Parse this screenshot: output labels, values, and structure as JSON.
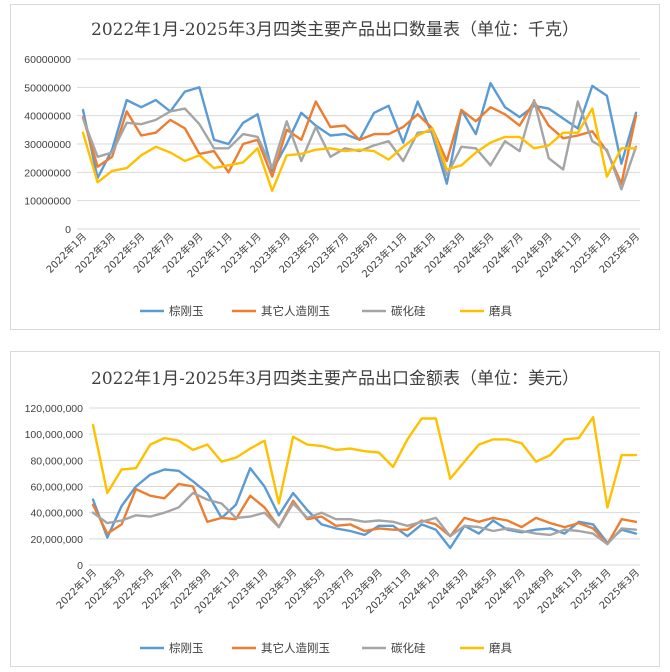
{
  "chart_data": [
    {
      "type": "line",
      "title": "2022年1月-2025年3月四类主要产品出口数量表（单位：千克）",
      "xlabel": "",
      "ylabel": "",
      "ylim": [
        0,
        60000000
      ],
      "yticks": [
        0,
        10000000,
        20000000,
        30000000,
        40000000,
        50000000,
        60000000
      ],
      "ytick_labels": [
        "0",
        "10000000",
        "20000000",
        "30000000",
        "40000000",
        "50000000",
        "60000000"
      ],
      "grid": "horizontal",
      "legend_position": "bottom",
      "x_tick_labels": [
        "2022年1月",
        "2022年3月",
        "2022年5月",
        "2022年7月",
        "2022年9月",
        "2022年11月",
        "2023年1月",
        "2023年3月",
        "2023年5月",
        "2023年7月",
        "2023年9月",
        "2023年11月",
        "2024年1月",
        "2024年3月",
        "2024年5月",
        "2024年7月",
        "2024年9月",
        "2024年11月",
        "2025年1月",
        "2025年3月"
      ],
      "series": [
        {
          "name": "棕刚玉",
          "color": "#5b9bd5",
          "values": [
            42000000,
            18000000,
            28000000,
            45500000,
            43000000,
            45500000,
            41500000,
            48500000,
            50000000,
            31500000,
            30000000,
            37500000,
            40500000,
            20500000,
            30000000,
            41000000,
            36500000,
            33000000,
            33500000,
            31500000,
            41000000,
            43500000,
            30500000,
            45000000,
            33500000,
            16000000,
            42000000,
            33500000,
            51500000,
            43000000,
            39500000,
            43500000,
            42500000,
            39000000,
            35500000,
            50500000,
            47000000,
            23000000,
            41000000
          ]
        },
        {
          "name": "其它人造刚玉",
          "color": "#ed7d31",
          "values": [
            39500000,
            22000000,
            25500000,
            41500000,
            33000000,
            34000000,
            38500000,
            35500000,
            26500000,
            27500000,
            20000000,
            30000000,
            31500000,
            18500000,
            35000000,
            31500000,
            45000000,
            36000000,
            36500000,
            31500000,
            33500000,
            33500000,
            36000000,
            40500000,
            35500000,
            24000000,
            42000000,
            38000000,
            43000000,
            40500000,
            36500000,
            45000000,
            36500000,
            32000000,
            33000000,
            34500000,
            27500000,
            16000000,
            40000000
          ]
        },
        {
          "name": "碳化硅",
          "color": "#a5a5a5",
          "values": [
            39000000,
            25500000,
            27000000,
            37500000,
            37000000,
            38500000,
            41500000,
            42500000,
            37000000,
            28500000,
            28500000,
            33500000,
            32500000,
            21500000,
            38000000,
            24000000,
            36000000,
            25500000,
            28500000,
            27500000,
            29500000,
            31000000,
            24000000,
            34000000,
            34500000,
            19000000,
            29000000,
            28500000,
            22500000,
            31000000,
            27500000,
            45500000,
            25000000,
            21000000,
            45000000,
            31000000,
            28000000,
            14000000,
            29000000
          ]
        },
        {
          "name": "磨具",
          "color": "#ffc000",
          "values": [
            34000000,
            16500000,
            20500000,
            21500000,
            26000000,
            29000000,
            27000000,
            24000000,
            26000000,
            21500000,
            22500000,
            23500000,
            28500000,
            13500000,
            26000000,
            26500000,
            28000000,
            28500000,
            27500000,
            28000000,
            27500000,
            24500000,
            29000000,
            33000000,
            35500000,
            21000000,
            22500000,
            27000000,
            30500000,
            32500000,
            32500000,
            28500000,
            29500000,
            34000000,
            34000000,
            42500000,
            18500000,
            28500000,
            28500000
          ]
        }
      ]
    },
    {
      "type": "line",
      "title": "2022年1月-2025年3月四类主要产品出口金额表（单位：美元）",
      "xlabel": "",
      "ylabel": "",
      "ylim": [
        0,
        120000000
      ],
      "yticks": [
        0,
        20000000,
        40000000,
        60000000,
        80000000,
        100000000,
        120000000
      ],
      "ytick_labels": [
        "0",
        "20,000,000",
        "40,000,000",
        "60,000,000",
        "80,000,000",
        "100,000,000",
        "120,000,000"
      ],
      "grid": "horizontal",
      "legend_position": "bottom",
      "x_tick_labels": [
        "2022年1月",
        "2022年3月",
        "2022年5月",
        "2022年7月",
        "2022年9月",
        "2022年11月",
        "2023年1月",
        "2023年3月",
        "2023年5月",
        "2023年7月",
        "2023年9月",
        "2023年11月",
        "2024年1月",
        "2024年3月",
        "2024年5月",
        "2024年7月",
        "2024年9月",
        "2024年11月",
        "2025年1月",
        "2025年3月"
      ],
      "series": [
        {
          "name": "棕刚玉",
          "color": "#5b9bd5",
          "values": [
            50000000,
            21000000,
            45000000,
            60000000,
            69000000,
            73000000,
            72000000,
            64000000,
            55000000,
            36000000,
            46000000,
            74000000,
            60000000,
            38000000,
            55000000,
            42000000,
            31000000,
            28000000,
            26000000,
            23000000,
            30000000,
            30000000,
            22000000,
            31000000,
            27000000,
            13000000,
            30000000,
            24000000,
            34000000,
            27000000,
            25000000,
            27000000,
            28000000,
            24000000,
            33000000,
            31000000,
            17000000,
            27000000,
            24000000
          ]
        },
        {
          "name": "其它人造刚玉",
          "color": "#ed7d31",
          "values": [
            46000000,
            24000000,
            31000000,
            58000000,
            53000000,
            51000000,
            62000000,
            60000000,
            33000000,
            36000000,
            35000000,
            53000000,
            44000000,
            29000000,
            49000000,
            35000000,
            37000000,
            30000000,
            31000000,
            26000000,
            28000000,
            27000000,
            27000000,
            34000000,
            31000000,
            22000000,
            36000000,
            33000000,
            36000000,
            34000000,
            29000000,
            36000000,
            32000000,
            29000000,
            32000000,
            28000000,
            16000000,
            35000000,
            33000000
          ]
        },
        {
          "name": "碳化硅",
          "color": "#a5a5a5",
          "values": [
            40000000,
            32000000,
            34000000,
            38000000,
            37000000,
            40000000,
            44000000,
            55000000,
            50000000,
            47000000,
            36000000,
            37000000,
            40000000,
            29000000,
            47000000,
            36000000,
            40000000,
            35000000,
            35000000,
            33000000,
            34000000,
            33000000,
            30000000,
            33000000,
            36000000,
            22000000,
            30000000,
            29000000,
            26000000,
            28000000,
            26000000,
            24000000,
            23000000,
            27000000,
            26000000,
            24000000,
            16000000,
            28000000,
            27000000
          ]
        },
        {
          "name": "磨具",
          "color": "#ffc000",
          "values": [
            107000000,
            55000000,
            73000000,
            74000000,
            92000000,
            97000000,
            95000000,
            88000000,
            92000000,
            79000000,
            82000000,
            89000000,
            95000000,
            47000000,
            98000000,
            92000000,
            91000000,
            88000000,
            89000000,
            87000000,
            86000000,
            75000000,
            96000000,
            112000000,
            112000000,
            66000000,
            79000000,
            92000000,
            96000000,
            96000000,
            93000000,
            79000000,
            84000000,
            96000000,
            97000000,
            113000000,
            44000000,
            84000000,
            84000000
          ]
        }
      ]
    }
  ]
}
